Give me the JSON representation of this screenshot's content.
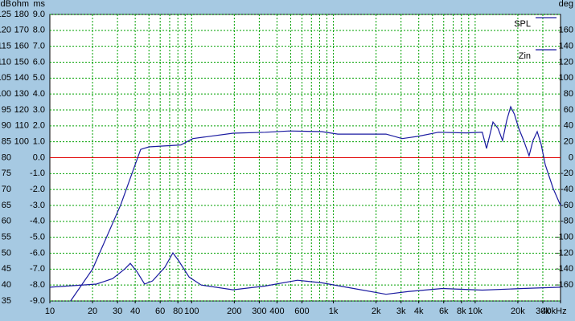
{
  "chart_data": {
    "type": "line",
    "xscale": "log",
    "xlim": [
      10,
      40000
    ],
    "xticks": [
      10,
      20,
      30,
      40,
      60,
      80,
      100,
      200,
      300,
      400,
      600,
      {
        "value": 1000,
        "label": "1k"
      },
      {
        "value": 2000,
        "label": "2k"
      },
      {
        "value": 3000,
        "label": "3k"
      },
      {
        "value": 4000,
        "label": "4k"
      },
      {
        "value": 6000,
        "label": "6k"
      },
      {
        "value": 8000,
        "label": "8k"
      },
      {
        "value": 10000,
        "label": "10k"
      },
      {
        "value": 20000,
        "label": "20k"
      },
      {
        "value": 30000,
        "label": "30k"
      },
      {
        "value": 40000,
        "label": "40kHz"
      }
    ],
    "xgrid": [
      20,
      30,
      40,
      50,
      60,
      70,
      80,
      90,
      100,
      200,
      300,
      400,
      500,
      600,
      700,
      800,
      900,
      1000,
      2000,
      3000,
      4000,
      5000,
      6000,
      7000,
      8000,
      9000,
      10000,
      20000,
      30000
    ],
    "ylabel": "dB",
    "ylim": [
      35,
      125
    ],
    "yticks": [
      35,
      40,
      45,
      50,
      55,
      60,
      65,
      70,
      75,
      80,
      85,
      90,
      95,
      100,
      105,
      110,
      115,
      120,
      125
    ],
    "ohm_label": "ohm",
    "ohm_lim": [
      0,
      180
    ],
    "ohm_ticks": [
      100,
      110,
      120,
      130,
      140,
      150,
      160,
      170,
      180
    ],
    "ms_label": "ms",
    "ms_lim": [
      -9,
      9
    ],
    "ms_ticks": [
      {
        "value": -9,
        "label": "-9.0"
      },
      {
        "value": -8,
        "label": "-8.0"
      },
      {
        "value": -7,
        "label": "-7.0"
      },
      {
        "value": -6,
        "label": "-6.0"
      },
      {
        "value": -5,
        "label": "-5.0"
      },
      {
        "value": -4,
        "label": "-4.0"
      },
      {
        "value": -3,
        "label": "-3.0"
      },
      {
        "value": -2,
        "label": "-2.0"
      },
      {
        "value": -1,
        "label": "-1.0"
      },
      {
        "value": 0,
        "label": "0.0"
      },
      {
        "value": 1,
        "label": "1.0"
      },
      {
        "value": 2,
        "label": "2.0"
      },
      {
        "value": 3,
        "label": "3.0"
      },
      {
        "value": 4,
        "label": "4.0"
      },
      {
        "value": 5,
        "label": "5.0"
      },
      {
        "value": 6,
        "label": "6.0"
      },
      {
        "value": 7,
        "label": "7.0"
      },
      {
        "value": 8,
        "label": "8.0"
      },
      {
        "value": 9,
        "label": "9.0"
      }
    ],
    "y2label": "deg",
    "y2lim": [
      -180,
      180
    ],
    "y2ticks": [
      -160,
      -140,
      -120,
      -100,
      -80,
      -60,
      -40,
      -20,
      0,
      20,
      40,
      60,
      80,
      100,
      120,
      140,
      160
    ],
    "reference_line": {
      "value": 80,
      "color": "#e00000"
    },
    "grid": true,
    "grid_color": "#00a000",
    "legend": "top-right",
    "series": [
      {
        "name": "SPL",
        "color": "#1a1aa0",
        "x": [
          14,
          20,
          31.6,
          43.7,
          50,
          84,
          102,
          196,
          331,
          490,
          827,
          1073,
          2350,
          3050,
          3960,
          5490,
          8670,
          11230,
          12020,
          13350,
          14500,
          15600,
          16700,
          17800,
          18900,
          20300,
          22000,
          24000,
          25600,
          27400,
          29200,
          31200,
          35500,
          40000
        ],
        "values": [
          35,
          45,
          65.2,
          82.6,
          83.4,
          84,
          86,
          87.7,
          88,
          88.4,
          88.2,
          87.4,
          87.4,
          86,
          86.7,
          88,
          87.8,
          88,
          82.9,
          91.2,
          89.2,
          85.4,
          91.7,
          96,
          93.7,
          89.2,
          85.4,
          80.6,
          85.4,
          88.2,
          84.2,
          77.8,
          70.3,
          65
        ]
      },
      {
        "name": "Zin",
        "color": "#1a1aa0",
        "x": [
          10,
          21.3,
          27.7,
          33.7,
          36.9,
          41,
          46.6,
          53,
          64.7,
          73.8,
          81,
          96,
          117,
          196,
          331,
          558,
          827,
          1390,
          2350,
          3450,
          5870,
          11230,
          21600,
          40000
        ],
        "values": [
          39.3,
          40.3,
          42,
          45,
          46.8,
          44.3,
          40.3,
          41.3,
          45.6,
          50.1,
          47.6,
          42.5,
          40,
          38.5,
          39.7,
          41.5,
          40.7,
          38.9,
          37.1,
          38,
          38.9,
          38.4,
          38.9,
          39.3
        ]
      }
    ]
  }
}
